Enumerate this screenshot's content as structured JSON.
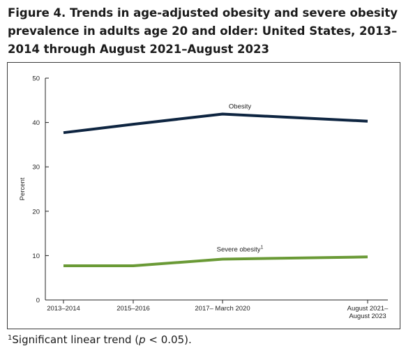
{
  "figure": {
    "title": "Figure 4. Trends in age-adjusted obesity and severe obesity prevalence in adults age 20 and older: United States, 2013–2014 through August 2021–August 2023",
    "footnote_marker": "1",
    "footnote_prefix": "Significant linear trend (",
    "footnote_italic": "p",
    "footnote_suffix": " < 0.05)."
  },
  "chart_data": {
    "type": "line",
    "title": "",
    "xlabel": "",
    "ylabel": "Percent",
    "ylim": [
      0,
      50
    ],
    "yticks": [
      "0",
      "10",
      "20",
      "30",
      "40",
      "50"
    ],
    "categories": [
      [
        "2013–2014"
      ],
      [
        "2015–2016"
      ],
      [
        "2017– March 2020"
      ],
      [
        "August 2021–",
        "August 2023"
      ]
    ],
    "grid": false,
    "legend": "none",
    "series": [
      {
        "name": "Obesity",
        "name_superscript": "",
        "values": [
          37.7,
          39.6,
          41.9,
          40.3
        ],
        "color": "#0e2541"
      },
      {
        "name": "Severe obesity",
        "name_superscript": "1",
        "values": [
          7.7,
          7.7,
          9.2,
          9.7
        ],
        "color": "#6a9a36"
      }
    ]
  }
}
